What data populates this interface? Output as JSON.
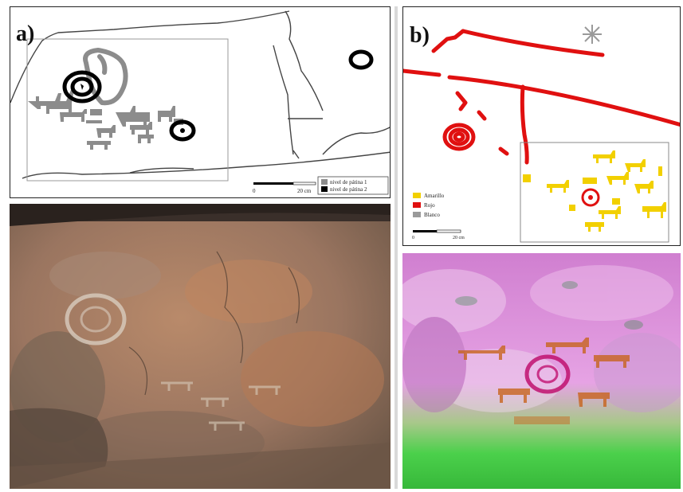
{
  "panel_a": {
    "letter": "a)",
    "legend": [
      {
        "label": "nivel de pátina 1",
        "color": "#8c8c8c"
      },
      {
        "label": "nivel de pátina 2",
        "color": "#000000"
      }
    ],
    "scale": {
      "zero": "0",
      "end": "20 cm"
    }
  },
  "panel_b": {
    "letter": "b)",
    "legend": [
      {
        "label": "Amarillo",
        "color": "#f2d000"
      },
      {
        "label": "Rojo",
        "color": "#e01010"
      },
      {
        "label": "Blanco",
        "color": "#9a9a9a"
      }
    ],
    "scale": {
      "zero": "0",
      "end": "20 cm"
    }
  },
  "colors": {
    "patina_1": "#8c8c8c",
    "patina_2": "#000000",
    "red_motif": "#e01010",
    "yellow_motif": "#f2d000"
  }
}
